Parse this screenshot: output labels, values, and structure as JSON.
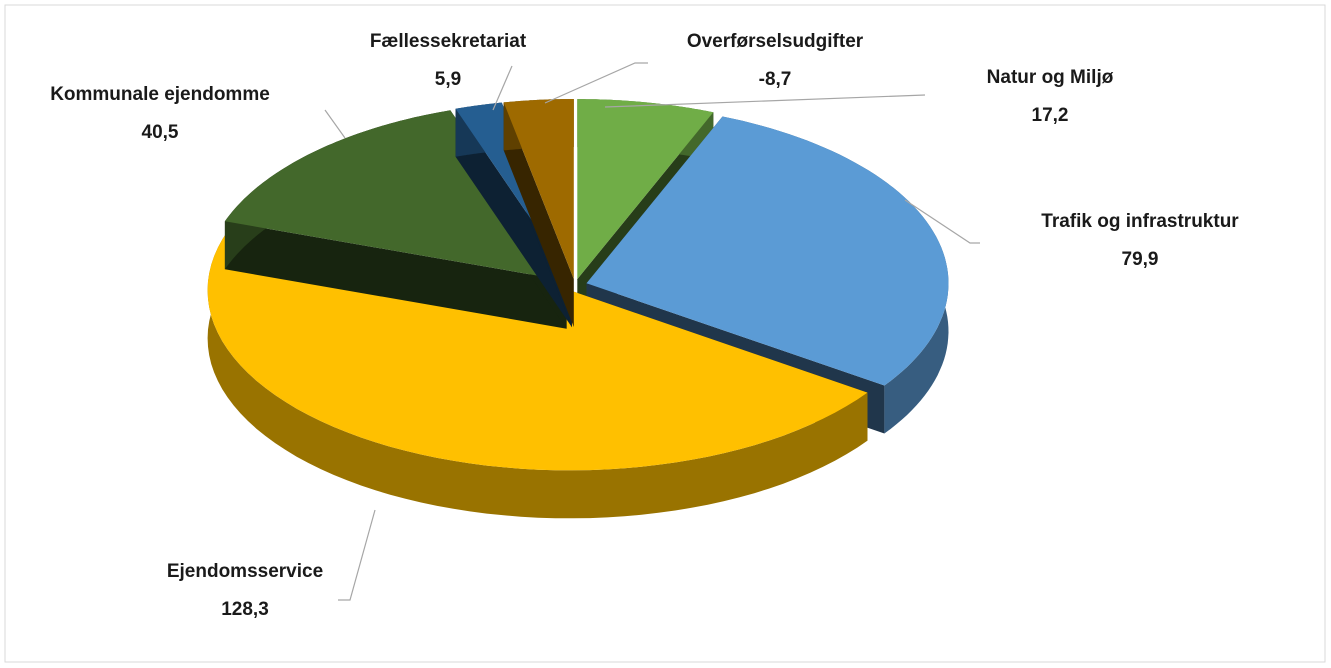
{
  "chart_data": {
    "type": "pie",
    "categories": [
      "Natur og Miljø",
      "Trafik og infrastruktur",
      "Ejendomsservice",
      "Kommunale ejendomme",
      "Fællessekretariat",
      "Overførselsudgifter"
    ],
    "values": [
      17.2,
      79.9,
      128.3,
      40.5,
      5.9,
      -8.7
    ],
    "value_labels": [
      "17,2",
      "79,9",
      "128,3",
      "40,5",
      "5,9",
      "-8,7"
    ],
    "colors": [
      "#70ad47",
      "#5b9bd5",
      "#ffc000",
      "#43682b",
      "#255e91",
      "#9e6a00"
    ]
  }
}
